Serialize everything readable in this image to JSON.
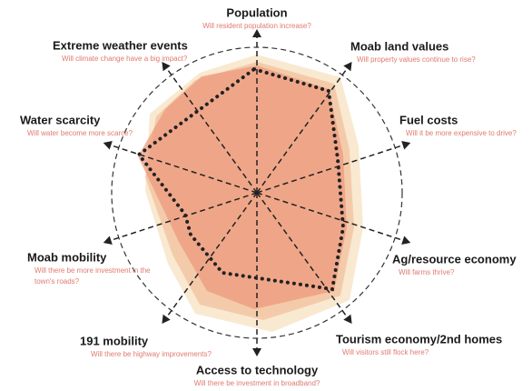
{
  "axes": [
    {
      "label": "Population",
      "question": [
        "Will resident population increase?"
      ]
    },
    {
      "label": "Moab land values",
      "question": [
        "Will property values continue to rise?"
      ]
    },
    {
      "label": "Fuel costs",
      "question": [
        "Will it be more expensive to drive?"
      ]
    },
    {
      "label": "Ag/resource economy",
      "question": [
        "Will farms thrive?"
      ]
    },
    {
      "label": "Tourism economy/2nd homes",
      "question": [
        "Will visitors still flock here?"
      ]
    },
    {
      "label": "Access to technology",
      "question": [
        "Will there be investment in broadband?"
      ]
    },
    {
      "label": "191 mobility",
      "question": [
        "Will there be highway improvements?"
      ]
    },
    {
      "label": "Moab mobility",
      "question": [
        "Will there be more investment in the",
        "town's roads?"
      ]
    },
    {
      "label": "Water scarcity",
      "question": [
        "Will water become more scarce?"
      ]
    },
    {
      "label": "Extreme weather events",
      "question": [
        "Will climate change have a big impact?"
      ]
    }
  ]
}
